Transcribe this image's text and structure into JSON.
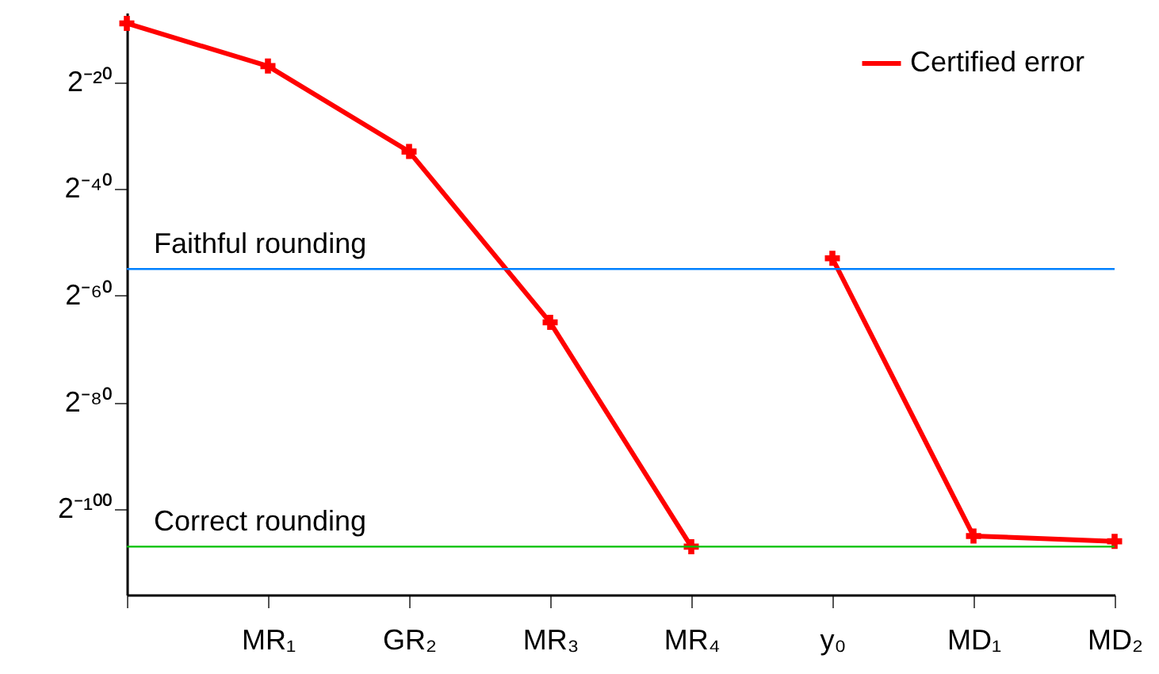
{
  "chart_data": {
    "type": "line",
    "categories": [
      null,
      "MR₁",
      "GR₂",
      "MR₃",
      "MR₄",
      "y₀",
      "MD₁",
      "MD₂"
    ],
    "series": [
      {
        "name": "Certified error",
        "color": "#ff0000",
        "values": [
          0.001953125,
          7.62939453125e-06,
          1.1641532182693481e-10,
          2.710505431213761e-20,
          6.162975822039155e-33,
          null,
          null,
          null
        ]
      },
      {
        "color": "#ff0000",
        "values": [
          null,
          null,
          null,
          null,
          null,
          1.1102230246251565e-16,
          2.465190328815662e-32,
          1.232595164407831e-32
        ]
      }
    ],
    "log": true,
    "ylim": [
      1.2037062152420224e-35,
      0.0078125
    ],
    "yticks": [
      {
        "value": 9.5367431640625e-07,
        "label": "2⁻²⁰"
      },
      {
        "value": 9.094947017729282e-13,
        "label": "2⁻⁴⁰"
      },
      {
        "value": 8.673617379884035e-19,
        "label": "2⁻⁶⁰"
      },
      {
        "value": 8.271806125530277e-25,
        "label": "2⁻⁸⁰"
      },
      {
        "value": 7.888609052210118e-31,
        "label": "2⁻¹⁰⁰"
      }
    ],
    "ref_lines": [
      {
        "axis": "y",
        "value": 2.7755575615628914e-17,
        "label": "Faithful rounding",
        "color": "#0080ff"
      },
      {
        "axis": "y",
        "value": 6.162975822039155e-33,
        "label": "Correct rounding",
        "color": "#00c000"
      }
    ],
    "marker": "cross",
    "line_style": "solid",
    "legend": "top right",
    "grid": false
  }
}
